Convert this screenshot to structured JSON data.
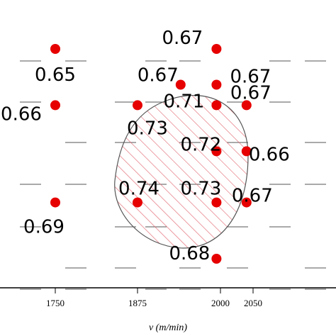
{
  "chart_data": {
    "type": "scatter",
    "xlabel": "v (m/min)",
    "xticks": [
      "1750",
      "1875",
      "2000",
      "2050"
    ],
    "xtick_values": [
      1750,
      1875,
      2000,
      2050
    ],
    "point_color": "#e60000",
    "region_color": "#e0606a",
    "series": [
      {
        "points": [
          {
            "x": 1750,
            "y": 5.0,
            "label": "0.65"
          },
          {
            "x": 1750,
            "y": 3.9,
            "label": "0.66"
          },
          {
            "x": 1750,
            "y": 2.0,
            "label": "0.69"
          },
          {
            "x": 1875,
            "y": 3.9,
            "label": "0.73"
          },
          {
            "x": 1875,
            "y": 2.0,
            "label": "0.74"
          },
          {
            "x": 1940,
            "y": 4.3,
            "label": "0.67"
          },
          {
            "x": 1994,
            "y": 5.0,
            "label": "0.67"
          },
          {
            "x": 1994,
            "y": 4.3,
            "label": "0.67"
          },
          {
            "x": 1994,
            "y": 3.9,
            "label": "0.71"
          },
          {
            "x": 1994,
            "y": 3.0,
            "label": "0.72"
          },
          {
            "x": 1994,
            "y": 2.0,
            "label": "0.73"
          },
          {
            "x": 1994,
            "y": 0.9,
            "label": "0.68"
          },
          {
            "x": 2040,
            "y": 3.9,
            "label": "0.67"
          },
          {
            "x": 2040,
            "y": 3.0,
            "label": "0.66"
          },
          {
            "x": 2040,
            "y": 2.0,
            "label": "0.67"
          }
        ]
      }
    ],
    "optimal_region": "hatched oval around 0.71–0.74 values"
  }
}
